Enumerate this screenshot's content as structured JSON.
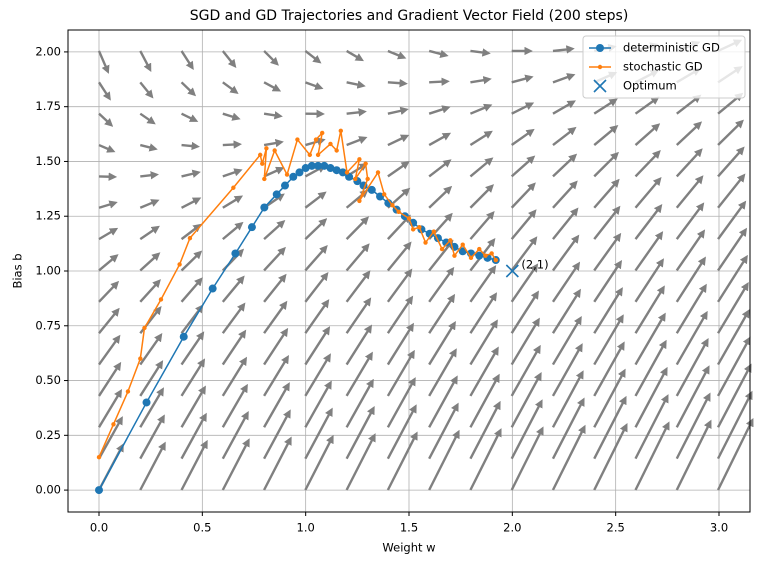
{
  "chart_data": {
    "type": "line",
    "title": "SGD and GD Trajectories and Gradient Vector Field (200 steps)",
    "x_label": "Weight w",
    "y_label": "Bias b",
    "xlim": [
      -0.15,
      3.15
    ],
    "ylim": [
      -0.1,
      2.1
    ],
    "xticks": [
      {
        "value": 0,
        "label": "0.0"
      },
      {
        "value": 0.5,
        "label": "0.5"
      },
      {
        "value": 1,
        "label": "1.0"
      },
      {
        "value": 1.5,
        "label": "1.5"
      },
      {
        "value": 2,
        "label": "2.0"
      },
      {
        "value": 2.5,
        "label": "2.5"
      },
      {
        "value": 3,
        "label": "3.0"
      }
    ],
    "yticks": [
      {
        "value": 0,
        "label": "0.00"
      },
      {
        "value": 0.25,
        "label": "0.25"
      },
      {
        "value": 0.5,
        "label": "0.50"
      },
      {
        "value": 0.75,
        "label": "0.75"
      },
      {
        "value": 1,
        "label": "1.00"
      },
      {
        "value": 1.25,
        "label": "1.25"
      },
      {
        "value": 1.5,
        "label": "1.50"
      },
      {
        "value": 1.75,
        "label": "1.75"
      },
      {
        "value": 2,
        "label": "2.00"
      }
    ],
    "grid": true,
    "legend": "upper right",
    "series": [
      {
        "name": "deterministic GD",
        "color": "#1f77b4",
        "marker_size": 4,
        "x": [
          0,
          0.23,
          0.41,
          0.55,
          0.66,
          0.74,
          0.8,
          0.86,
          0.9,
          0.94,
          0.97,
          1.0,
          1.03,
          1.06,
          1.09,
          1.12,
          1.15,
          1.18,
          1.21,
          1.25,
          1.28,
          1.32,
          1.36,
          1.4,
          1.44,
          1.48,
          1.52,
          1.56,
          1.6,
          1.64,
          1.68,
          1.72,
          1.76,
          1.8,
          1.84,
          1.88,
          1.92
        ],
        "values": [
          0,
          0.4,
          0.7,
          0.92,
          1.08,
          1.2,
          1.29,
          1.35,
          1.39,
          1.43,
          1.45,
          1.47,
          1.48,
          1.48,
          1.48,
          1.47,
          1.46,
          1.45,
          1.43,
          1.41,
          1.39,
          1.37,
          1.34,
          1.31,
          1.28,
          1.25,
          1.22,
          1.19,
          1.17,
          1.15,
          1.13,
          1.11,
          1.09,
          1.08,
          1.07,
          1.06,
          1.05
        ]
      },
      {
        "name": "stochastic GD",
        "color": "#ff7f0e",
        "marker_size": 2.2,
        "x": [
          0,
          0.07,
          0.14,
          0.2,
          0.22,
          0.3,
          0.39,
          0.44,
          0.65,
          0.78,
          0.79,
          0.81,
          0.8,
          0.85,
          0.91,
          0.96,
          1.02,
          1.05,
          1.08,
          1.06,
          1.12,
          1.15,
          1.17,
          1.2,
          1.26,
          1.24,
          1.29,
          1.3,
          1.26,
          1.35,
          1.38,
          1.42,
          1.45,
          1.5,
          1.52,
          1.55,
          1.58,
          1.62,
          1.66,
          1.7,
          1.72,
          1.76,
          1.8,
          1.84,
          1.87,
          1.9,
          1.92
        ],
        "values": [
          0.15,
          0.3,
          0.45,
          0.6,
          0.74,
          0.87,
          1.03,
          1.15,
          1.38,
          1.53,
          1.49,
          1.56,
          1.42,
          1.55,
          1.44,
          1.6,
          1.53,
          1.6,
          1.63,
          1.53,
          1.58,
          1.55,
          1.64,
          1.45,
          1.51,
          1.42,
          1.49,
          1.42,
          1.32,
          1.45,
          1.35,
          1.3,
          1.27,
          1.24,
          1.19,
          1.2,
          1.13,
          1.18,
          1.1,
          1.14,
          1.07,
          1.12,
          1.06,
          1.1,
          1.07,
          1.08,
          1.05
        ]
      },
      {
        "name": "Optimum",
        "color": "#1f77b4",
        "marker": "x",
        "x": [
          2
        ],
        "values": [
          1
        ]
      }
    ],
    "annotations": [
      {
        "text": "(2,1)",
        "x": 2,
        "y": 1
      }
    ]
  }
}
